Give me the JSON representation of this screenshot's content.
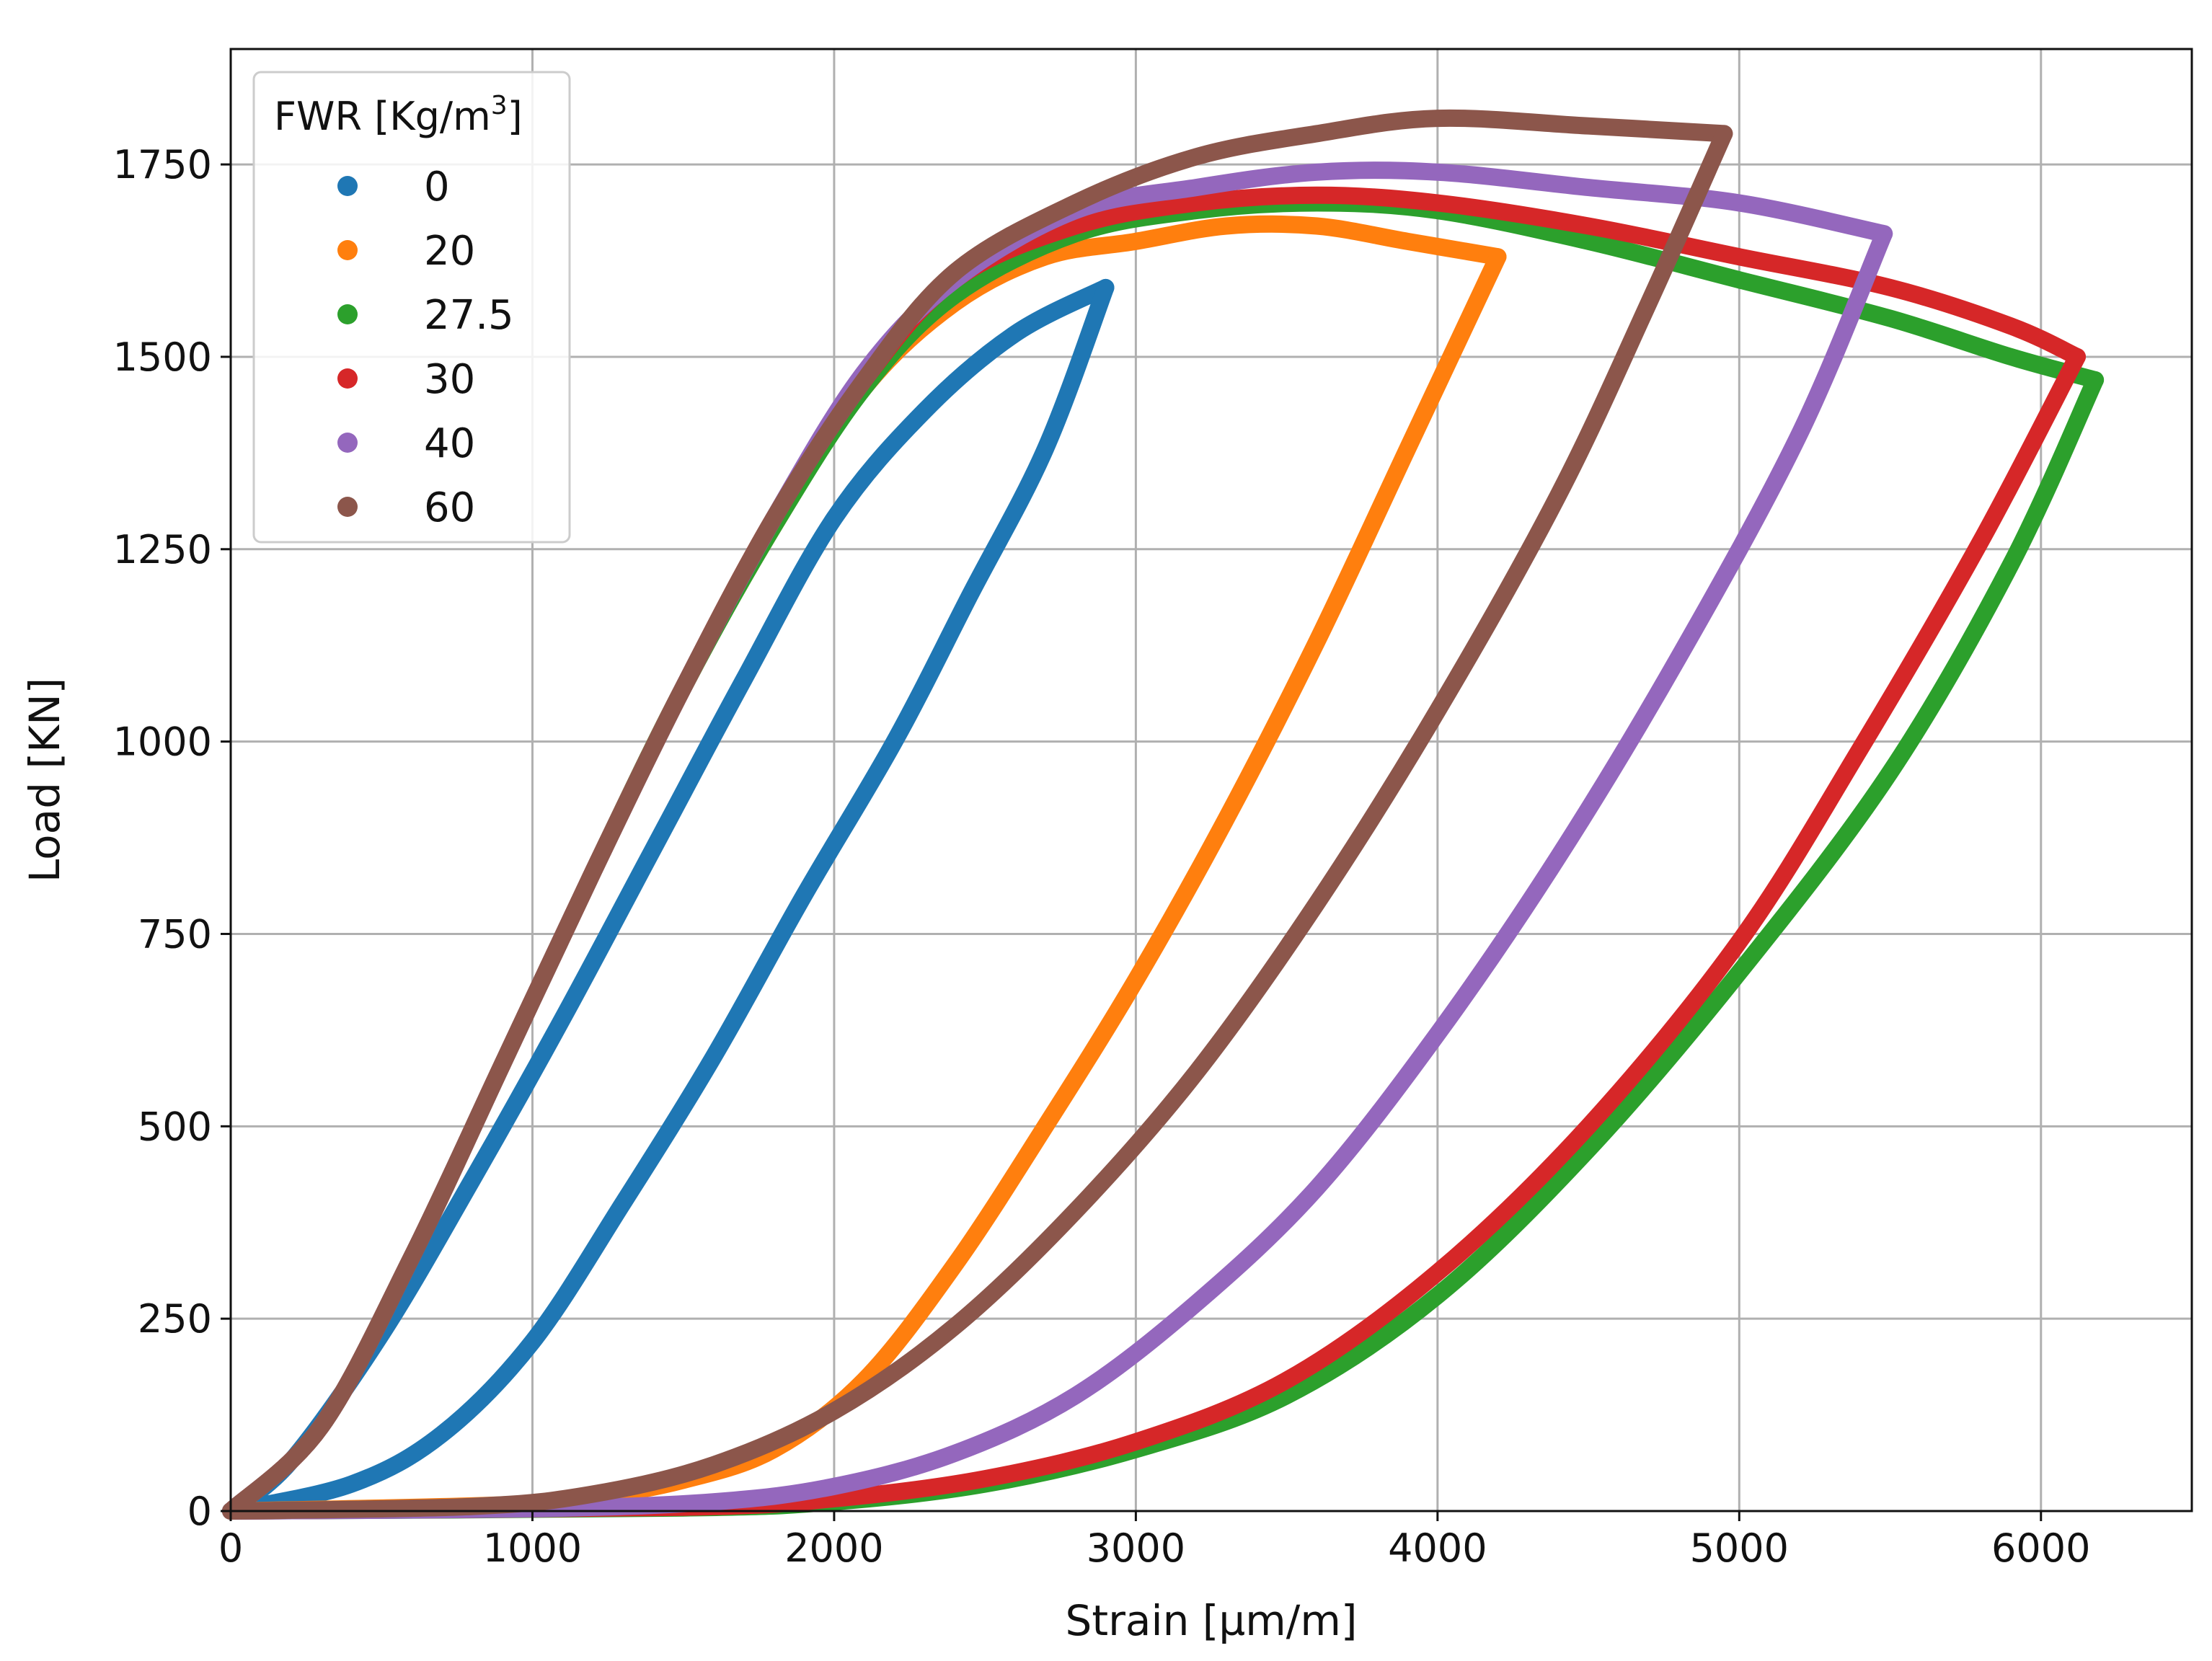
{
  "chart_data": {
    "type": "scatter",
    "xlabel": "Strain [µm/m]",
    "ylabel": "Load [KN]",
    "xlim": [
      0,
      6500
    ],
    "ylim": [
      0,
      1900
    ],
    "xticks": [
      0,
      1000,
      2000,
      3000,
      4000,
      5000,
      6000
    ],
    "yticks": [
      0,
      250,
      500,
      750,
      1000,
      1250,
      1500,
      1750
    ],
    "grid": true,
    "legend": {
      "title_text": "FWR [Kg/m",
      "title_sup": "3",
      "title_suffix": "]",
      "placement": "top-left"
    },
    "series": [
      {
        "name": "0",
        "color": "#1f77b4",
        "loading": [
          [
            0,
            0
          ],
          [
            200,
            65
          ],
          [
            500,
            230
          ],
          [
            800,
            430
          ],
          [
            1100,
            640
          ],
          [
            1400,
            860
          ],
          [
            1700,
            1080
          ],
          [
            2000,
            1290
          ],
          [
            2300,
            1430
          ],
          [
            2600,
            1530
          ],
          [
            2900,
            1590
          ]
        ],
        "unloading": [
          [
            2900,
            1590
          ],
          [
            2700,
            1380
          ],
          [
            2450,
            1190
          ],
          [
            2200,
            1000
          ],
          [
            1900,
            800
          ],
          [
            1600,
            590
          ],
          [
            1300,
            400
          ],
          [
            1000,
            220
          ],
          [
            700,
            100
          ],
          [
            400,
            35
          ],
          [
            0,
            0
          ]
        ]
      },
      {
        "name": "20",
        "color": "#ff7f0e",
        "loading": [
          [
            0,
            0
          ],
          [
            300,
            110
          ],
          [
            600,
            330
          ],
          [
            900,
            580
          ],
          [
            1200,
            830
          ],
          [
            1500,
            1070
          ],
          [
            1800,
            1280
          ],
          [
            2100,
            1460
          ],
          [
            2400,
            1570
          ],
          [
            2700,
            1630
          ],
          [
            3000,
            1650
          ],
          [
            3300,
            1670
          ],
          [
            3600,
            1670
          ],
          [
            3900,
            1650
          ],
          [
            4200,
            1630
          ]
        ],
        "unloading": [
          [
            4200,
            1630
          ],
          [
            3900,
            1380
          ],
          [
            3600,
            1130
          ],
          [
            3300,
            900
          ],
          [
            3000,
            690
          ],
          [
            2700,
            500
          ],
          [
            2400,
            320
          ],
          [
            2100,
            170
          ],
          [
            1800,
            80
          ],
          [
            1500,
            40
          ],
          [
            1200,
            18
          ],
          [
            900,
            8
          ],
          [
            0,
            0
          ]
        ]
      },
      {
        "name": "27.5",
        "color": "#2ca02c",
        "loading": [
          [
            0,
            0
          ],
          [
            300,
            110
          ],
          [
            600,
            330
          ],
          [
            900,
            580
          ],
          [
            1200,
            830
          ],
          [
            1500,
            1070
          ],
          [
            1800,
            1280
          ],
          [
            2100,
            1460
          ],
          [
            2400,
            1580
          ],
          [
            2800,
            1660
          ],
          [
            3200,
            1690
          ],
          [
            3600,
            1700
          ],
          [
            4000,
            1690
          ],
          [
            4500,
            1650
          ],
          [
            5000,
            1600
          ],
          [
            5500,
            1550
          ],
          [
            5900,
            1500
          ],
          [
            6180,
            1470
          ]
        ],
        "unloading": [
          [
            6180,
            1470
          ],
          [
            5900,
            1230
          ],
          [
            5500,
            960
          ],
          [
            5000,
            700
          ],
          [
            4500,
            470
          ],
          [
            4000,
            280
          ],
          [
            3500,
            150
          ],
          [
            3000,
            80
          ],
          [
            2500,
            35
          ],
          [
            2000,
            12
          ],
          [
            1500,
            4
          ],
          [
            0,
            0
          ]
        ]
      },
      {
        "name": "30",
        "color": "#d62728",
        "loading": [
          [
            0,
            0
          ],
          [
            300,
            110
          ],
          [
            600,
            330
          ],
          [
            900,
            580
          ],
          [
            1200,
            830
          ],
          [
            1500,
            1070
          ],
          [
            1800,
            1290
          ],
          [
            2100,
            1470
          ],
          [
            2400,
            1600
          ],
          [
            2800,
            1670
          ],
          [
            3200,
            1700
          ],
          [
            3600,
            1710
          ],
          [
            4000,
            1700
          ],
          [
            4500,
            1670
          ],
          [
            5000,
            1630
          ],
          [
            5500,
            1590
          ],
          [
            5900,
            1540
          ],
          [
            6120,
            1500
          ]
        ],
        "unloading": [
          [
            6120,
            1500
          ],
          [
            5800,
            1260
          ],
          [
            5400,
            990
          ],
          [
            5000,
            740
          ],
          [
            4500,
            500
          ],
          [
            4000,
            310
          ],
          [
            3500,
            170
          ],
          [
            3000,
            90
          ],
          [
            2500,
            42
          ],
          [
            2000,
            16
          ],
          [
            1500,
            5
          ],
          [
            0,
            0
          ]
        ]
      },
      {
        "name": "40",
        "color": "#9467bd",
        "loading": [
          [
            0,
            0
          ],
          [
            300,
            110
          ],
          [
            600,
            330
          ],
          [
            900,
            580
          ],
          [
            1200,
            830
          ],
          [
            1500,
            1070
          ],
          [
            1800,
            1290
          ],
          [
            2100,
            1480
          ],
          [
            2400,
            1600
          ],
          [
            2800,
            1690
          ],
          [
            3200,
            1720
          ],
          [
            3600,
            1740
          ],
          [
            4000,
            1740
          ],
          [
            4500,
            1720
          ],
          [
            5000,
            1700
          ],
          [
            5480,
            1660
          ]
        ],
        "unloading": [
          [
            5480,
            1660
          ],
          [
            5200,
            1400
          ],
          [
            4800,
            1110
          ],
          [
            4400,
            850
          ],
          [
            4000,
            620
          ],
          [
            3600,
            420
          ],
          [
            3200,
            270
          ],
          [
            2800,
            150
          ],
          [
            2400,
            75
          ],
          [
            2000,
            32
          ],
          [
            1600,
            12
          ],
          [
            1000,
            3
          ],
          [
            0,
            0
          ]
        ]
      },
      {
        "name": "60",
        "color": "#8c564b",
        "loading": [
          [
            0,
            0
          ],
          [
            300,
            110
          ],
          [
            600,
            330
          ],
          [
            900,
            580
          ],
          [
            1200,
            830
          ],
          [
            1500,
            1070
          ],
          [
            1800,
            1290
          ],
          [
            2100,
            1470
          ],
          [
            2400,
            1610
          ],
          [
            2800,
            1700
          ],
          [
            3200,
            1760
          ],
          [
            3600,
            1790
          ],
          [
            4000,
            1810
          ],
          [
            4500,
            1800
          ],
          [
            4950,
            1790
          ]
        ],
        "unloading": [
          [
            4950,
            1790
          ],
          [
            4700,
            1570
          ],
          [
            4400,
            1320
          ],
          [
            4000,
            1040
          ],
          [
            3600,
            790
          ],
          [
            3200,
            570
          ],
          [
            2800,
            390
          ],
          [
            2400,
            240
          ],
          [
            2000,
            130
          ],
          [
            1600,
            60
          ],
          [
            1200,
            22
          ],
          [
            800,
            6
          ],
          [
            0,
            0
          ]
        ]
      }
    ]
  }
}
